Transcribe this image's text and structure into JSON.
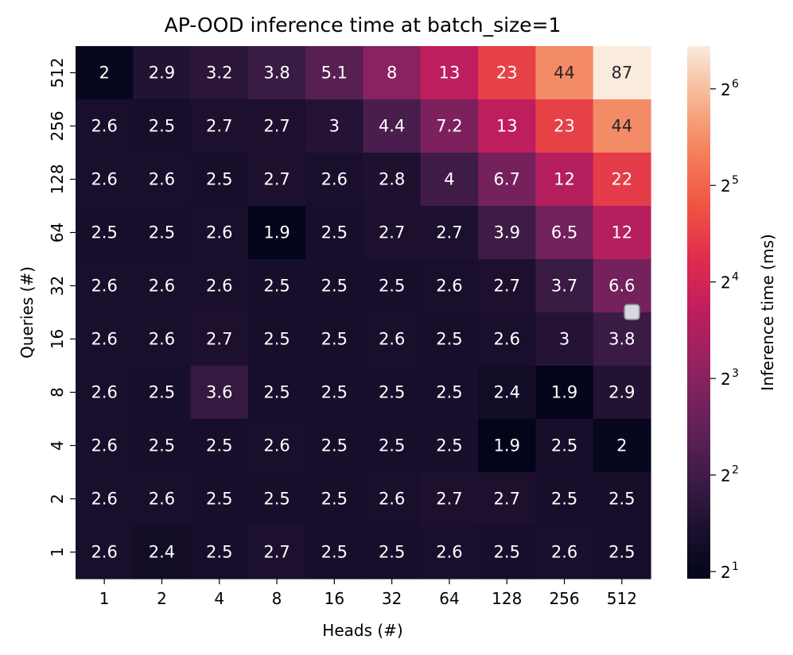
{
  "chart_data": {
    "type": "heatmap",
    "title": "AP-OOD inference time at batch_size=1",
    "xlabel": "Heads (#)",
    "ylabel": "Queries (#)",
    "x_categories": [
      "1",
      "2",
      "4",
      "8",
      "16",
      "32",
      "64",
      "128",
      "256",
      "512"
    ],
    "y_categories": [
      "512",
      "256",
      "128",
      "64",
      "32",
      "16",
      "8",
      "4",
      "2",
      "1"
    ],
    "values": [
      [
        2,
        2.9,
        3.2,
        3.8,
        5.1,
        8,
        13,
        23,
        44,
        87
      ],
      [
        2.6,
        2.5,
        2.7,
        2.7,
        3,
        4.4,
        7.2,
        13,
        23,
        44
      ],
      [
        2.6,
        2.6,
        2.5,
        2.7,
        2.6,
        2.8,
        4,
        6.7,
        12,
        22
      ],
      [
        2.5,
        2.5,
        2.6,
        1.9,
        2.5,
        2.7,
        2.7,
        3.9,
        6.5,
        12
      ],
      [
        2.6,
        2.6,
        2.6,
        2.5,
        2.5,
        2.5,
        2.6,
        2.7,
        3.7,
        6.6
      ],
      [
        2.6,
        2.6,
        2.7,
        2.5,
        2.5,
        2.6,
        2.5,
        2.6,
        3,
        3.8
      ],
      [
        2.6,
        2.5,
        3.6,
        2.5,
        2.5,
        2.5,
        2.5,
        2.4,
        1.9,
        2.9
      ],
      [
        2.6,
        2.5,
        2.5,
        2.6,
        2.5,
        2.5,
        2.5,
        1.9,
        2.5,
        2
      ],
      [
        2.6,
        2.6,
        2.5,
        2.5,
        2.5,
        2.6,
        2.7,
        2.7,
        2.5,
        2.5
      ],
      [
        2.6,
        2.4,
        2.5,
        2.7,
        2.5,
        2.5,
        2.6,
        2.5,
        2.6,
        2.5
      ]
    ],
    "colorbar": {
      "label": "Inference time (ms)",
      "scale": "log2",
      "range": [
        1.9,
        87
      ],
      "ticks": [
        {
          "base": "2",
          "exp": "1",
          "value": 2
        },
        {
          "base": "2",
          "exp": "2",
          "value": 4
        },
        {
          "base": "2",
          "exp": "3",
          "value": 8
        },
        {
          "base": "2",
          "exp": "4",
          "value": 16
        },
        {
          "base": "2",
          "exp": "5",
          "value": 32
        },
        {
          "base": "2",
          "exp": "6",
          "value": 64
        }
      ],
      "colormap": "rocket"
    },
    "grid": false,
    "annotations": "cell values shown in each cell"
  }
}
